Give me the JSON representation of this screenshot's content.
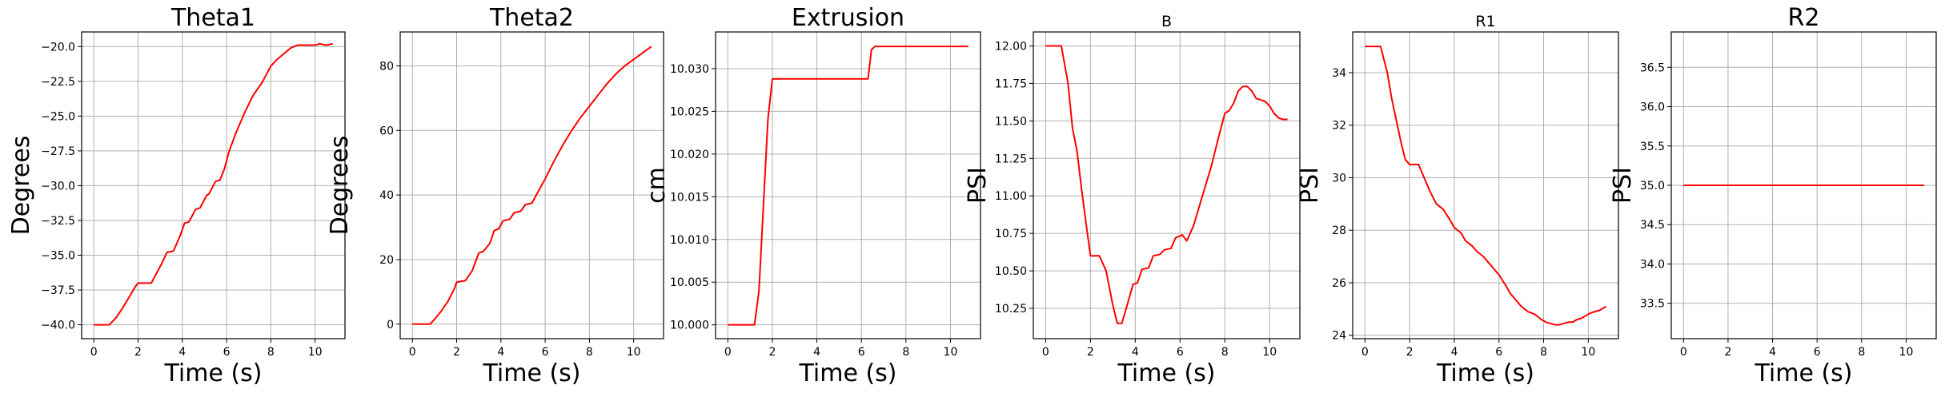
{
  "line_color": "#ff0000",
  "grid_color": "#b0b0b0",
  "chart_data": [
    {
      "type": "line",
      "title": "Theta1",
      "xlabel": "Time (s)",
      "ylabel": "Degrees",
      "grid": true,
      "xlim": [
        -0.55,
        11.35
      ],
      "ylim": [
        -41.0,
        -18.95
      ],
      "xticks": [
        0,
        2,
        4,
        6,
        8,
        10
      ],
      "xtick_labels": [
        "0",
        "2",
        "4",
        "6",
        "8",
        "10"
      ],
      "yticks": [
        -40.0,
        -37.5,
        -35.0,
        -32.5,
        -30.0,
        -27.5,
        -25.0,
        -22.5,
        -20.0
      ],
      "ytick_labels": [
        "−40.0",
        "−37.5",
        "−35.0",
        "−32.5",
        "−30.0",
        "−27.5",
        "−25.0",
        "−22.5",
        "−20.0"
      ],
      "series": [
        {
          "x": [
            0,
            0.3,
            0.7,
            1.0,
            1.3,
            1.6,
            1.9,
            2.0,
            2.6,
            2.8,
            3.1,
            3.3,
            3.6,
            3.9,
            4.1,
            4.3,
            4.6,
            4.8,
            5.1,
            5.2,
            5.5,
            5.7,
            5.9,
            6.1,
            6.4,
            6.8,
            7.2,
            7.6,
            8.0,
            8.3,
            8.6,
            8.9,
            9.2,
            9.4,
            9.7,
            10.0,
            10.2,
            10.5,
            10.8
          ],
          "y": [
            -40.0,
            -40.0,
            -40.0,
            -39.5,
            -38.8,
            -38.0,
            -37.2,
            -37.0,
            -37.0,
            -36.4,
            -35.5,
            -34.8,
            -34.7,
            -33.6,
            -32.7,
            -32.6,
            -31.7,
            -31.6,
            -30.7,
            -30.6,
            -29.7,
            -29.6,
            -28.8,
            -27.6,
            -26.3,
            -24.8,
            -23.5,
            -22.6,
            -21.4,
            -20.9,
            -20.5,
            -20.1,
            -19.9,
            -19.9,
            -19.9,
            -19.9,
            -19.8,
            -19.9,
            -19.8
          ]
        }
      ]
    },
    {
      "type": "line",
      "title": "Theta2",
      "xlabel": "Time (s)",
      "ylabel": "Degrees",
      "grid": true,
      "xlim": [
        -0.55,
        11.35
      ],
      "ylim": [
        -4.5,
        90.5
      ],
      "xticks": [
        0,
        2,
        4,
        6,
        8,
        10
      ],
      "xtick_labels": [
        "0",
        "2",
        "4",
        "6",
        "8",
        "10"
      ],
      "yticks": [
        0,
        20,
        40,
        60,
        80
      ],
      "ytick_labels": [
        "0",
        "20",
        "40",
        "60",
        "80"
      ],
      "series": [
        {
          "x": [
            0,
            0.4,
            0.8,
            1.0,
            1.3,
            1.6,
            1.9,
            2.0,
            2.4,
            2.7,
            3.0,
            3.2,
            3.5,
            3.7,
            3.9,
            4.1,
            4.4,
            4.6,
            4.9,
            5.1,
            5.4,
            5.6,
            6.0,
            6.4,
            6.8,
            7.2,
            7.6,
            8.0,
            8.4,
            8.8,
            9.2,
            9.6,
            10.0,
            10.4,
            10.8
          ],
          "y": [
            0,
            0,
            0,
            1.5,
            4.0,
            7.0,
            11.0,
            13.0,
            13.5,
            16.5,
            22.0,
            22.5,
            25.0,
            29.0,
            29.5,
            32.0,
            32.5,
            34.5,
            35.0,
            37.0,
            37.5,
            40.0,
            45.0,
            50.5,
            55.5,
            60.0,
            64.0,
            67.5,
            71.0,
            74.5,
            77.5,
            80.0,
            82.0,
            84.0,
            86.0
          ]
        }
      ]
    },
    {
      "type": "line",
      "title": "Extrusion",
      "xlabel": "Time (s)",
      "ylabel": "cm",
      "grid": true,
      "xlim": [
        -0.55,
        11.35
      ],
      "ylim": [
        9.99838,
        10.0343
      ],
      "xticks": [
        0,
        2,
        4,
        6,
        8,
        10
      ],
      "xtick_labels": [
        "0",
        "2",
        "4",
        "6",
        "8",
        "10"
      ],
      "yticks": [
        10.0,
        10.005,
        10.01,
        10.015,
        10.02,
        10.025,
        10.03
      ],
      "ytick_labels": [
        "10.000",
        "10.005",
        "10.010",
        "10.015",
        "10.020",
        "10.025",
        "10.030"
      ],
      "series": [
        {
          "x": [
            0,
            0.5,
            1.0,
            1.2,
            1.4,
            1.6,
            1.8,
            2.0,
            3.0,
            4.0,
            5.0,
            6.0,
            6.3,
            6.45,
            6.6,
            7.0,
            8.0,
            9.0,
            10.0,
            10.8
          ],
          "y": [
            10.0,
            10.0,
            10.0,
            10.0,
            10.004,
            10.014,
            10.024,
            10.0288,
            10.0288,
            10.0288,
            10.0288,
            10.0288,
            10.0288,
            10.0322,
            10.0326,
            10.0326,
            10.0326,
            10.0326,
            10.0326,
            10.0326
          ]
        }
      ]
    },
    {
      "type": "line",
      "title": "B",
      "xlabel": "Time (s)",
      "ylabel": "PSI",
      "grid": true,
      "xlim": [
        -0.55,
        11.35
      ],
      "ylim": [
        10.0475,
        12.0935
      ],
      "xticks": [
        0,
        2,
        4,
        6,
        8,
        10
      ],
      "xtick_labels": [
        "0",
        "2",
        "4",
        "6",
        "8",
        "10"
      ],
      "yticks": [
        10.25,
        10.5,
        10.75,
        11.0,
        11.25,
        11.5,
        11.75,
        12.0
      ],
      "ytick_labels": [
        "10.25",
        "10.50",
        "10.75",
        "11.00",
        "11.25",
        "11.50",
        "11.75",
        "12.00"
      ],
      "series": [
        {
          "x": [
            0,
            0.3,
            0.7,
            1.0,
            1.2,
            1.4,
            1.6,
            1.8,
            2.0,
            2.4,
            2.7,
            3.0,
            3.2,
            3.4,
            3.6,
            3.9,
            4.1,
            4.3,
            4.6,
            4.8,
            5.1,
            5.3,
            5.6,
            5.8,
            6.1,
            6.3,
            6.6,
            6.8,
            7.1,
            7.4,
            7.7,
            8.0,
            8.2,
            8.4,
            8.6,
            8.8,
            9.0,
            9.2,
            9.4,
            9.6,
            9.8,
            10.0,
            10.2,
            10.4,
            10.6,
            10.8
          ],
          "y": [
            12.0,
            12.0,
            12.0,
            11.75,
            11.45,
            11.3,
            11.05,
            10.82,
            10.6,
            10.6,
            10.5,
            10.27,
            10.15,
            10.15,
            10.25,
            10.41,
            10.42,
            10.51,
            10.52,
            10.6,
            10.61,
            10.64,
            10.65,
            10.72,
            10.74,
            10.7,
            10.8,
            10.9,
            11.05,
            11.2,
            11.38,
            11.55,
            11.57,
            11.62,
            11.7,
            11.73,
            11.73,
            11.7,
            11.65,
            11.64,
            11.63,
            11.6,
            11.55,
            11.52,
            11.51,
            11.51
          ]
        }
      ]
    },
    {
      "type": "line",
      "title": "R1",
      "xlabel": "Time (s)",
      "ylabel": "PSI",
      "grid": true,
      "xlim": [
        -0.55,
        11.35
      ],
      "ylim": [
        23.87,
        35.55
      ],
      "xticks": [
        0,
        2,
        4,
        6,
        8,
        10
      ],
      "xtick_labels": [
        "0",
        "2",
        "4",
        "6",
        "8",
        "10"
      ],
      "yticks": [
        24,
        26,
        28,
        30,
        32,
        34
      ],
      "ytick_labels": [
        "24",
        "26",
        "28",
        "30",
        "32",
        "34"
      ],
      "series": [
        {
          "x": [
            0,
            0.4,
            0.7,
            1.0,
            1.2,
            1.4,
            1.6,
            1.8,
            2.0,
            2.4,
            2.7,
            2.9,
            3.2,
            3.5,
            3.8,
            4.0,
            4.3,
            4.5,
            4.8,
            5.0,
            5.3,
            5.5,
            5.8,
            6.0,
            6.3,
            6.5,
            6.8,
            7.0,
            7.3,
            7.6,
            7.9,
            8.1,
            8.3,
            8.5,
            8.7,
            8.9,
            9.1,
            9.3,
            9.5,
            9.7,
            9.9,
            10.1,
            10.3,
            10.5,
            10.7,
            10.8
          ],
          "y": [
            35.0,
            35.0,
            35.0,
            34.0,
            33.0,
            32.2,
            31.4,
            30.7,
            30.5,
            30.5,
            29.9,
            29.5,
            29.0,
            28.8,
            28.4,
            28.1,
            27.9,
            27.6,
            27.4,
            27.2,
            27.0,
            26.8,
            26.5,
            26.3,
            25.9,
            25.6,
            25.3,
            25.1,
            24.9,
            24.8,
            24.6,
            24.5,
            24.45,
            24.4,
            24.4,
            24.45,
            24.5,
            24.5,
            24.6,
            24.65,
            24.75,
            24.85,
            24.9,
            24.95,
            25.05,
            25.1
          ]
        }
      ]
    },
    {
      "type": "line",
      "title": "R2",
      "xlabel": "Time (s)",
      "ylabel": "PSI",
      "grid": true,
      "xlim": [
        -0.55,
        11.35
      ],
      "ylim": [
        33.05,
        36.95
      ],
      "xticks": [
        0,
        2,
        4,
        6,
        8,
        10
      ],
      "xtick_labels": [
        "0",
        "2",
        "4",
        "6",
        "8",
        "10"
      ],
      "yticks": [
        33.5,
        34.0,
        34.5,
        35.0,
        35.5,
        36.0,
        36.5
      ],
      "ytick_labels": [
        "33.5",
        "34.0",
        "34.5",
        "35.0",
        "35.5",
        "36.0",
        "36.5"
      ],
      "series": [
        {
          "x": [
            0,
            2,
            4,
            6,
            8,
            10,
            10.8
          ],
          "y": [
            35.0,
            35.0,
            35.0,
            35.0,
            35.0,
            35.0,
            35.0
          ]
        }
      ]
    }
  ]
}
